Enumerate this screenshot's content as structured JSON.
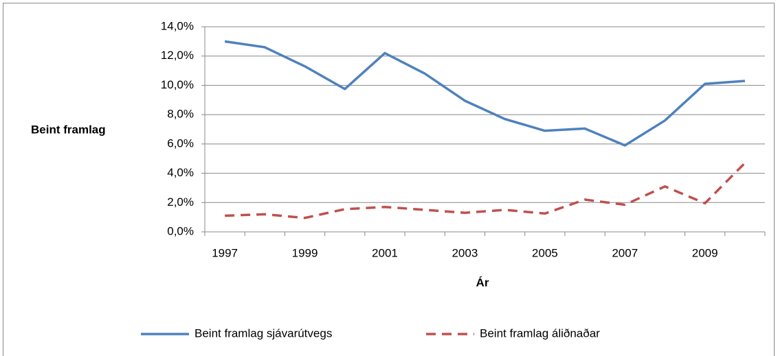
{
  "chart_data": {
    "type": "line",
    "y_label": "Beint framlag",
    "x_label": "Ár",
    "categories": [
      "1997",
      null,
      "1999",
      null,
      "2001",
      null,
      "2003",
      null,
      "2005",
      null,
      "2007",
      null,
      "2009",
      null
    ],
    "series": [
      {
        "name": "Beint framlag sjávarútvegs",
        "color": "#4f81bd",
        "dash": false,
        "values": [
          13.0,
          12.6,
          11.3,
          9.75,
          12.2,
          10.8,
          8.95,
          7.7,
          6.9,
          7.05,
          5.9,
          7.6,
          10.1,
          10.3
        ]
      },
      {
        "name": "Beint framlag áliðnaðar",
        "color": "#c0504d",
        "dash": true,
        "values": [
          1.1,
          1.2,
          0.95,
          1.55,
          1.7,
          1.5,
          1.3,
          1.5,
          1.25,
          2.2,
          1.85,
          3.1,
          1.95,
          4.7
        ]
      }
    ],
    "ylim": [
      0,
      14
    ],
    "yticks": [
      {
        "value": 0,
        "label": "0,0%"
      },
      {
        "value": 2,
        "label": "2,0%"
      },
      {
        "value": 4,
        "label": "4,0%"
      },
      {
        "value": 6,
        "label": "6,0%"
      },
      {
        "value": 8,
        "label": "8,0%"
      },
      {
        "value": 10,
        "label": "10,0%"
      },
      {
        "value": 12,
        "label": "12,0%"
      },
      {
        "value": 14,
        "label": "14,0%"
      }
    ],
    "grid": true,
    "legend": "bottom"
  }
}
